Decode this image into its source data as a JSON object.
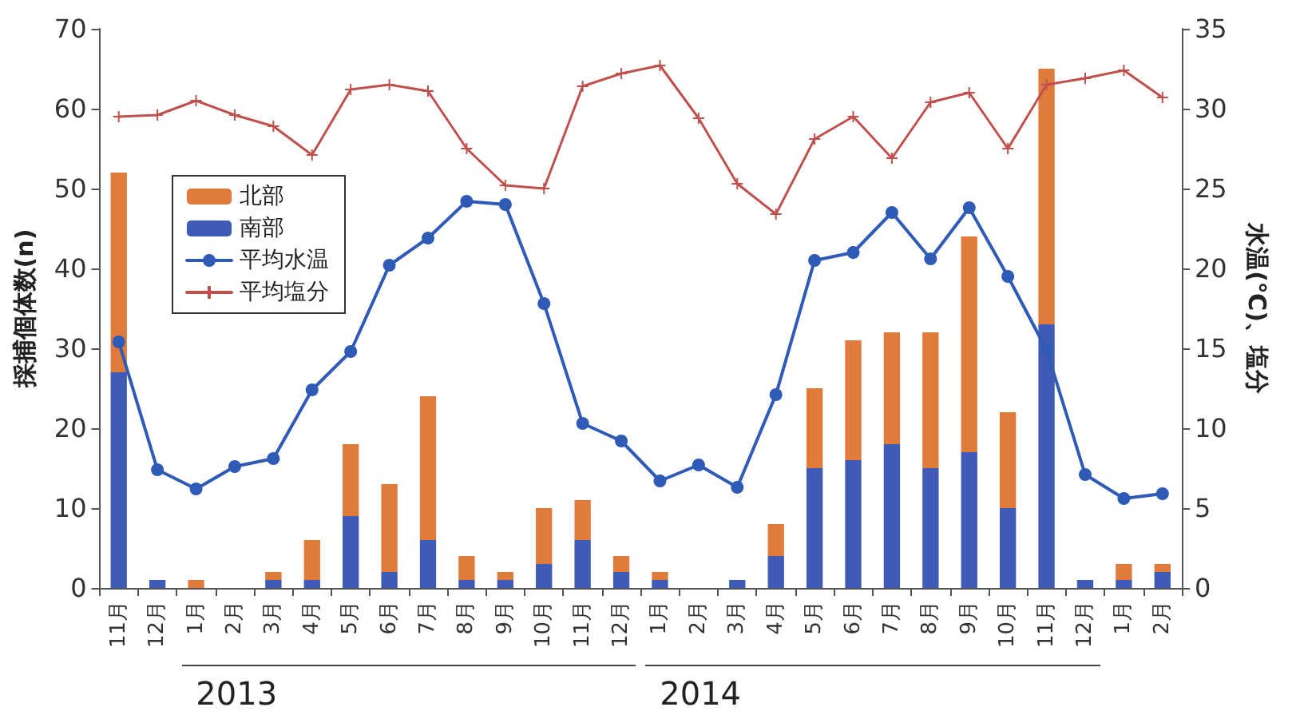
{
  "chart_data": {
    "type": "bar",
    "stacked": true,
    "ylabel": "採捕個体数(n)",
    "y2label": "水温(℃)、塩分",
    "categories": [
      "11月",
      "12月",
      "1月",
      "2月",
      "3月",
      "4月",
      "5月",
      "6月",
      "7月",
      "8月",
      "9月",
      "10月",
      "11月",
      "12月",
      "1月",
      "2月",
      "3月",
      "4月",
      "5月",
      "6月",
      "7月",
      "8月",
      "9月",
      "10月",
      "11月",
      "12月",
      "1月",
      "2月"
    ],
    "series": [
      {
        "name": "南部",
        "color": "#3f5bb5",
        "values": [
          27,
          1,
          0,
          0,
          1,
          1,
          9,
          2,
          6,
          1,
          1,
          3,
          6,
          2,
          1,
          0,
          1,
          4,
          15,
          16,
          18,
          15,
          17,
          10,
          33,
          1,
          1,
          2
        ]
      },
      {
        "name": "北部",
        "color": "#e07b3c",
        "values": [
          25,
          0,
          1,
          0,
          1,
          5,
          9,
          11,
          18,
          3,
          1,
          7,
          5,
          2,
          1,
          0,
          0,
          4,
          10,
          15,
          14,
          17,
          27,
          12,
          32,
          0,
          2,
          1
        ]
      },
      {
        "name": "平均水温",
        "type": "line",
        "axis": "y2",
        "marker": "circle",
        "color": "#2f5bb7",
        "values": [
          15.4,
          7.4,
          6.2,
          7.6,
          8.1,
          12.4,
          14.8,
          20.2,
          21.9,
          24.2,
          24.0,
          17.8,
          10.3,
          9.2,
          6.7,
          7.7,
          6.3,
          12.1,
          20.5,
          21.0,
          23.5,
          20.6,
          23.8,
          19.5,
          14.9,
          7.1,
          5.6,
          5.9
        ]
      },
      {
        "name": "平均塩分",
        "type": "line",
        "axis": "y2",
        "marker": "cross",
        "color": "#c0504d",
        "values": [
          29.5,
          29.6,
          30.5,
          29.6,
          28.9,
          27.1,
          31.2,
          31.5,
          31.1,
          27.5,
          25.2,
          25.0,
          31.4,
          32.2,
          32.7,
          29.4,
          25.3,
          23.4,
          28.1,
          29.5,
          26.9,
          30.4,
          31.0,
          27.5,
          31.5,
          31.9,
          32.4,
          30.7
        ]
      }
    ],
    "ylim": [
      0,
      70
    ],
    "yticks": [
      0,
      10,
      20,
      30,
      40,
      50,
      60,
      70
    ],
    "y2lim": [
      0,
      35
    ],
    "y2ticks": [
      0,
      5,
      10,
      15,
      20,
      25,
      30,
      35
    ],
    "grid": false,
    "legend": "top left",
    "annotations": [
      "2013",
      "2014"
    ]
  }
}
